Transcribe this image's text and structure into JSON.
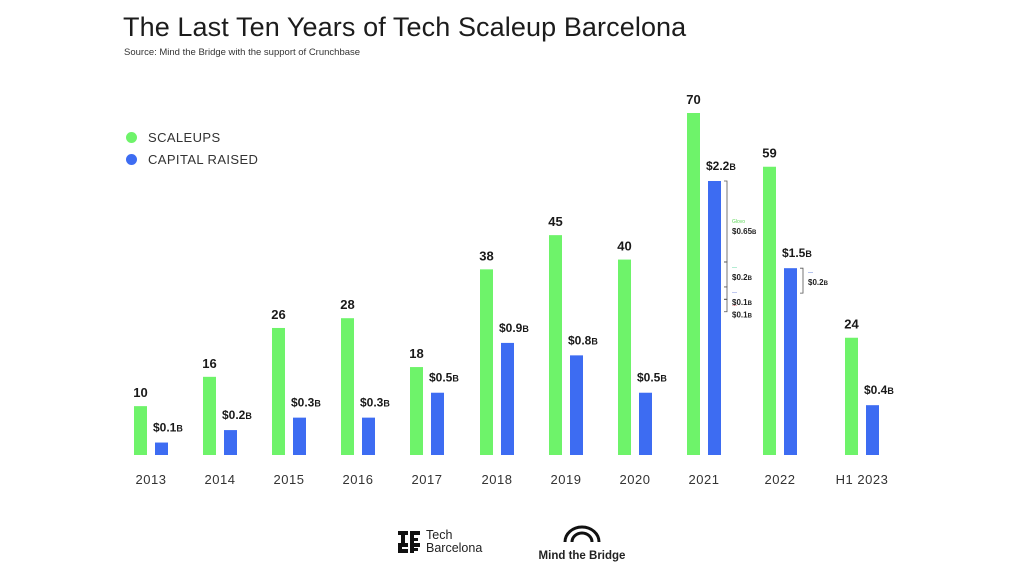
{
  "header": {
    "title": "The Last Ten Years of Tech Scaleup Barcelona",
    "subtitle": "Source: Mind the Bridge with the support of Crunchbase"
  },
  "legend": {
    "items": [
      {
        "label": "SCALEUPS",
        "color": "#6ef36a"
      },
      {
        "label": "CAPITAL RAISED",
        "color": "#3d6cf2"
      }
    ]
  },
  "footer": {
    "logo1_line1": "Tech",
    "logo1_line2": "Barcelona",
    "logo2": "Mind the Bridge"
  },
  "chart_data": {
    "type": "bar",
    "title": "The Last Ten Years of Tech Scaleup Barcelona",
    "subtitle": "Source: Mind the Bridge with the support of Crunchbase",
    "xlabel": "",
    "ylabel": "",
    "grid": false,
    "legend_position": "top-left",
    "categories": [
      "2013",
      "2014",
      "2015",
      "2016",
      "2017",
      "2018",
      "2019",
      "2020",
      "2021",
      "2022",
      "H1 2023"
    ],
    "series": [
      {
        "name": "SCALEUPS",
        "color": "#6ef36a",
        "values": [
          10,
          16,
          26,
          28,
          18,
          38,
          45,
          40,
          70,
          59,
          24
        ],
        "labels": [
          "10",
          "16",
          "26",
          "28",
          "18",
          "38",
          "45",
          "40",
          "70",
          "59",
          "24"
        ]
      },
      {
        "name": "CAPITAL RAISED",
        "color": "#3d6cf2",
        "unit": "$B",
        "values": [
          0.1,
          0.2,
          0.3,
          0.3,
          0.5,
          0.9,
          0.8,
          0.5,
          2.2,
          1.5,
          0.4
        ],
        "labels": [
          "$0.1",
          "$0.2",
          "$0.3",
          "$0.3",
          "$0.5",
          "$0.9",
          "$0.8",
          "$0.5",
          "$2.2",
          "$1.5",
          "$0.4"
        ],
        "label_suffix": "B"
      }
    ],
    "annotations": [
      {
        "category": "2021",
        "breakdown": [
          {
            "company": "Glovo",
            "value": 0.65,
            "label": "$0.65",
            "suffix": "B",
            "color": "#5fd65a"
          },
          {
            "company": "[unreadable logo]",
            "value": 0.2,
            "label": "$0.2",
            "suffix": "B",
            "color": "#3fcf8e"
          },
          {
            "company": "[unreadable logo]",
            "value": 0.1,
            "label": "$0.1",
            "suffix": "B",
            "color": "#5a72d8"
          },
          {
            "company": "[unreadable logo]",
            "value": 0.1,
            "label": "$0.1",
            "suffix": "B",
            "color": "#e05a5a"
          }
        ]
      },
      {
        "category": "2022",
        "breakdown": [
          {
            "company": "[unreadable logo]",
            "value": 0.2,
            "label": "$0.2",
            "suffix": "B",
            "color": "#3a5fcf"
          }
        ]
      }
    ]
  }
}
